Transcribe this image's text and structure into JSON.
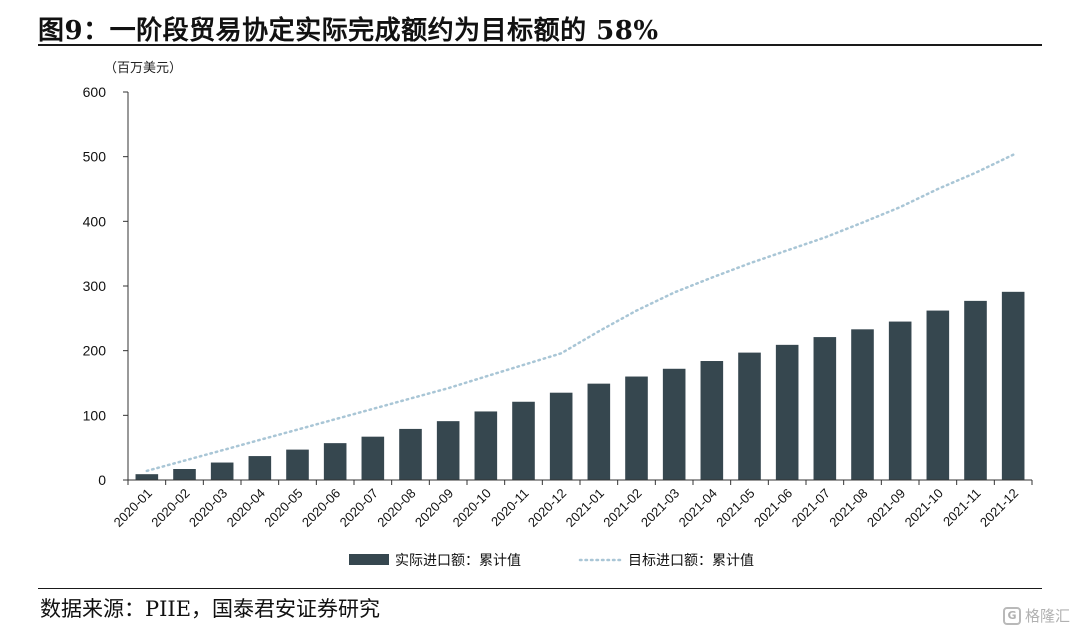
{
  "title": "图9：一阶段贸易协定实际完成额约为目标额的 58%",
  "source": "数据来源：PIIE，国泰君安证券研究",
  "watermark": {
    "logo": "G",
    "text": "格隆汇"
  },
  "colors": {
    "bar": "#36474f",
    "target_line": "#a9c6d6",
    "axis": "#333333"
  },
  "chart_data": {
    "type": "bar",
    "unit_label": "（百万美元）",
    "ylim": [
      0,
      600
    ],
    "yticks": [
      0,
      100,
      200,
      300,
      400,
      500,
      600
    ],
    "categories": [
      "2020-01",
      "2020-02",
      "2020-03",
      "2020-04",
      "2020-05",
      "2020-06",
      "2020-07",
      "2020-08",
      "2020-09",
      "2020-10",
      "2020-11",
      "2020-12",
      "2021-01",
      "2021-02",
      "2021-03",
      "2021-04",
      "2021-05",
      "2021-06",
      "2021-07",
      "2021-08",
      "2021-09",
      "2021-10",
      "2021-11",
      "2021-12"
    ],
    "series": [
      {
        "name": "实际进口额：累计值",
        "type": "bar",
        "values": [
          9,
          17,
          27,
          37,
          47,
          57,
          67,
          79,
          91,
          106,
          121,
          135,
          149,
          160,
          172,
          184,
          197,
          209,
          221,
          233,
          245,
          262,
          277,
          291
        ]
      },
      {
        "name": "目标进口额：累计值",
        "type": "line",
        "style": "dotted",
        "values": [
          14,
          30,
          46,
          62,
          78,
          94,
          110,
          126,
          142,
          160,
          178,
          196,
          230,
          262,
          290,
          313,
          335,
          355,
          375,
          398,
          422,
          450,
          475,
          503
        ]
      }
    ],
    "legend_position": "bottom-center"
  }
}
